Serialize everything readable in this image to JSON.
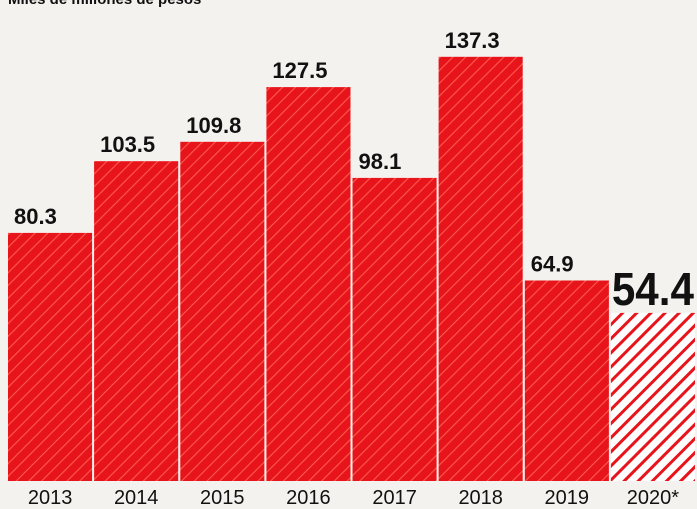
{
  "chart_data": {
    "type": "bar",
    "title": "Miles de millones de pesos",
    "xlabel": "",
    "ylabel": "",
    "categories": [
      "2013",
      "2014",
      "2015",
      "2016",
      "2017",
      "2018",
      "2019",
      "2020*"
    ],
    "values": [
      80.3,
      103.5,
      109.8,
      127.5,
      98.1,
      137.3,
      64.9,
      54.4
    ],
    "value_labels": [
      "80.3",
      "103.5",
      "109.8",
      "127.5",
      "98.1",
      "137.3",
      "64.9",
      "54.4"
    ],
    "ylim": [
      0,
      145
    ],
    "grid": false,
    "legend": "none",
    "highlight_index": 7,
    "colors": {
      "bar": "#e8141c",
      "bar_hatch": "#ff5a4a",
      "highlight_stripe": "#e8141c",
      "text": "#111111",
      "background": "#f4f2ee"
    }
  }
}
